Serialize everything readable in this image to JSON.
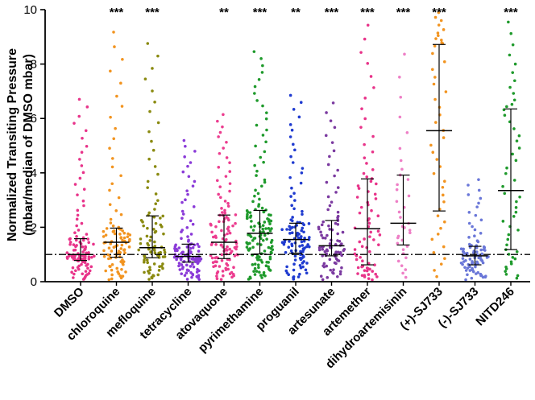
{
  "chart_data": {
    "type": "scatter",
    "subtype": "dot-plot with median and IQR",
    "ylabel_line1": "Normalized Transiting Pressure",
    "ylabel_line2": "(mbar/median of DMSO mbar)",
    "ylim": [
      0,
      10
    ],
    "yticks": [
      0,
      2,
      4,
      6,
      8,
      10
    ],
    "reference_line": 1,
    "categories": [
      {
        "name": "DMSO",
        "color": "#e8348a",
        "n": 110,
        "median": 1.0,
        "q1": 0.78,
        "q3": 1.58,
        "max": 6.85,
        "sig": ""
      },
      {
        "name": "chloroquine",
        "color": "#f29420",
        "n": 95,
        "median": 1.45,
        "q1": 0.9,
        "q3": 1.97,
        "max": 9.4,
        "sig": "***"
      },
      {
        "name": "mefloquine",
        "color": "#8a8a10",
        "n": 90,
        "median": 1.25,
        "q1": 0.88,
        "q3": 2.42,
        "max": 9.0,
        "sig": "***"
      },
      {
        "name": "tetracycline",
        "color": "#8a3ad8",
        "n": 120,
        "median": 0.93,
        "q1": 0.72,
        "q3": 1.38,
        "max": 5.3,
        "sig": ""
      },
      {
        "name": "atovaquone",
        "color": "#ec3d8f",
        "n": 110,
        "median": 1.45,
        "q1": 0.85,
        "q3": 2.45,
        "max": 6.25,
        "sig": "**"
      },
      {
        "name": "pyrimethamine",
        "color": "#1f9a2c",
        "n": 140,
        "median": 1.78,
        "q1": 1.02,
        "q3": 2.62,
        "max": 8.6,
        "sig": "***"
      },
      {
        "name": "proguanil",
        "color": "#1f3bd0",
        "n": 110,
        "median": 1.55,
        "q1": 1.05,
        "q3": 2.15,
        "max": 7.0,
        "sig": "**"
      },
      {
        "name": "artesunate",
        "color": "#7b3aa0",
        "n": 90,
        "median": 1.32,
        "q1": 0.95,
        "q3": 2.25,
        "max": 6.7,
        "sig": "***"
      },
      {
        "name": "artemether",
        "color": "#e8348a",
        "n": 75,
        "median": 1.95,
        "q1": 0.62,
        "q3": 3.78,
        "max": 9.65,
        "sig": "***"
      },
      {
        "name": "dihydroartemisinin",
        "color": "#ee7fc6",
        "n": 35,
        "median": 2.15,
        "q1": 1.35,
        "q3": 3.92,
        "max": 8.8,
        "sig": "***"
      },
      {
        "name": "(+)-SJ733",
        "color": "#f29420",
        "n": 45,
        "median": 5.55,
        "q1": 2.6,
        "q3": 8.72,
        "max": 10.0,
        "sig": "***"
      },
      {
        "name": "(-)-SJ733",
        "color": "#6a77d8",
        "n": 85,
        "median": 0.95,
        "q1": 0.62,
        "q3": 1.3,
        "max": 3.85,
        "sig": ""
      },
      {
        "name": "NITD246",
        "color": "#1f9a2c",
        "n": 50,
        "median": 3.35,
        "q1": 1.18,
        "q3": 6.35,
        "max": 9.75,
        "sig": "***"
      }
    ]
  }
}
